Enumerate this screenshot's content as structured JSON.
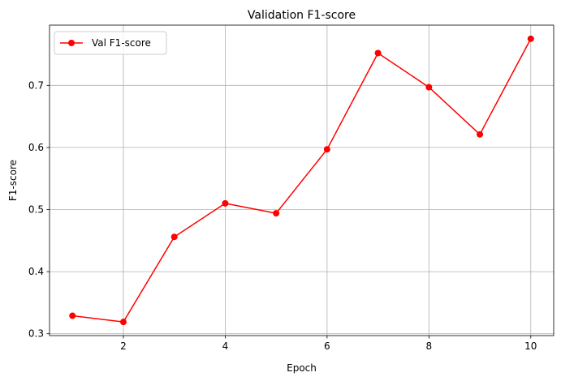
{
  "chart_data": {
    "type": "line",
    "title": "Validation F1-score",
    "xlabel": "Epoch",
    "ylabel": "F1-score",
    "xlim": [
      0.55,
      10.45
    ],
    "ylim": [
      0.297,
      0.797
    ],
    "xticks": [
      2,
      4,
      6,
      8,
      10
    ],
    "yticks": [
      0.3,
      0.4,
      0.5,
      0.6,
      0.7
    ],
    "ytick_labels": [
      "0.3",
      "0.4",
      "0.5",
      "0.6",
      "0.7"
    ],
    "grid": true,
    "legend_position": "upper-left",
    "series": [
      {
        "name": "Val F1-score",
        "color": "#ff0000",
        "marker": "circle",
        "x": [
          1,
          2,
          3,
          4,
          5,
          6,
          7,
          8,
          9,
          10
        ],
        "y": [
          0.329,
          0.319,
          0.456,
          0.51,
          0.494,
          0.597,
          0.752,
          0.697,
          0.621,
          0.775
        ]
      }
    ]
  }
}
